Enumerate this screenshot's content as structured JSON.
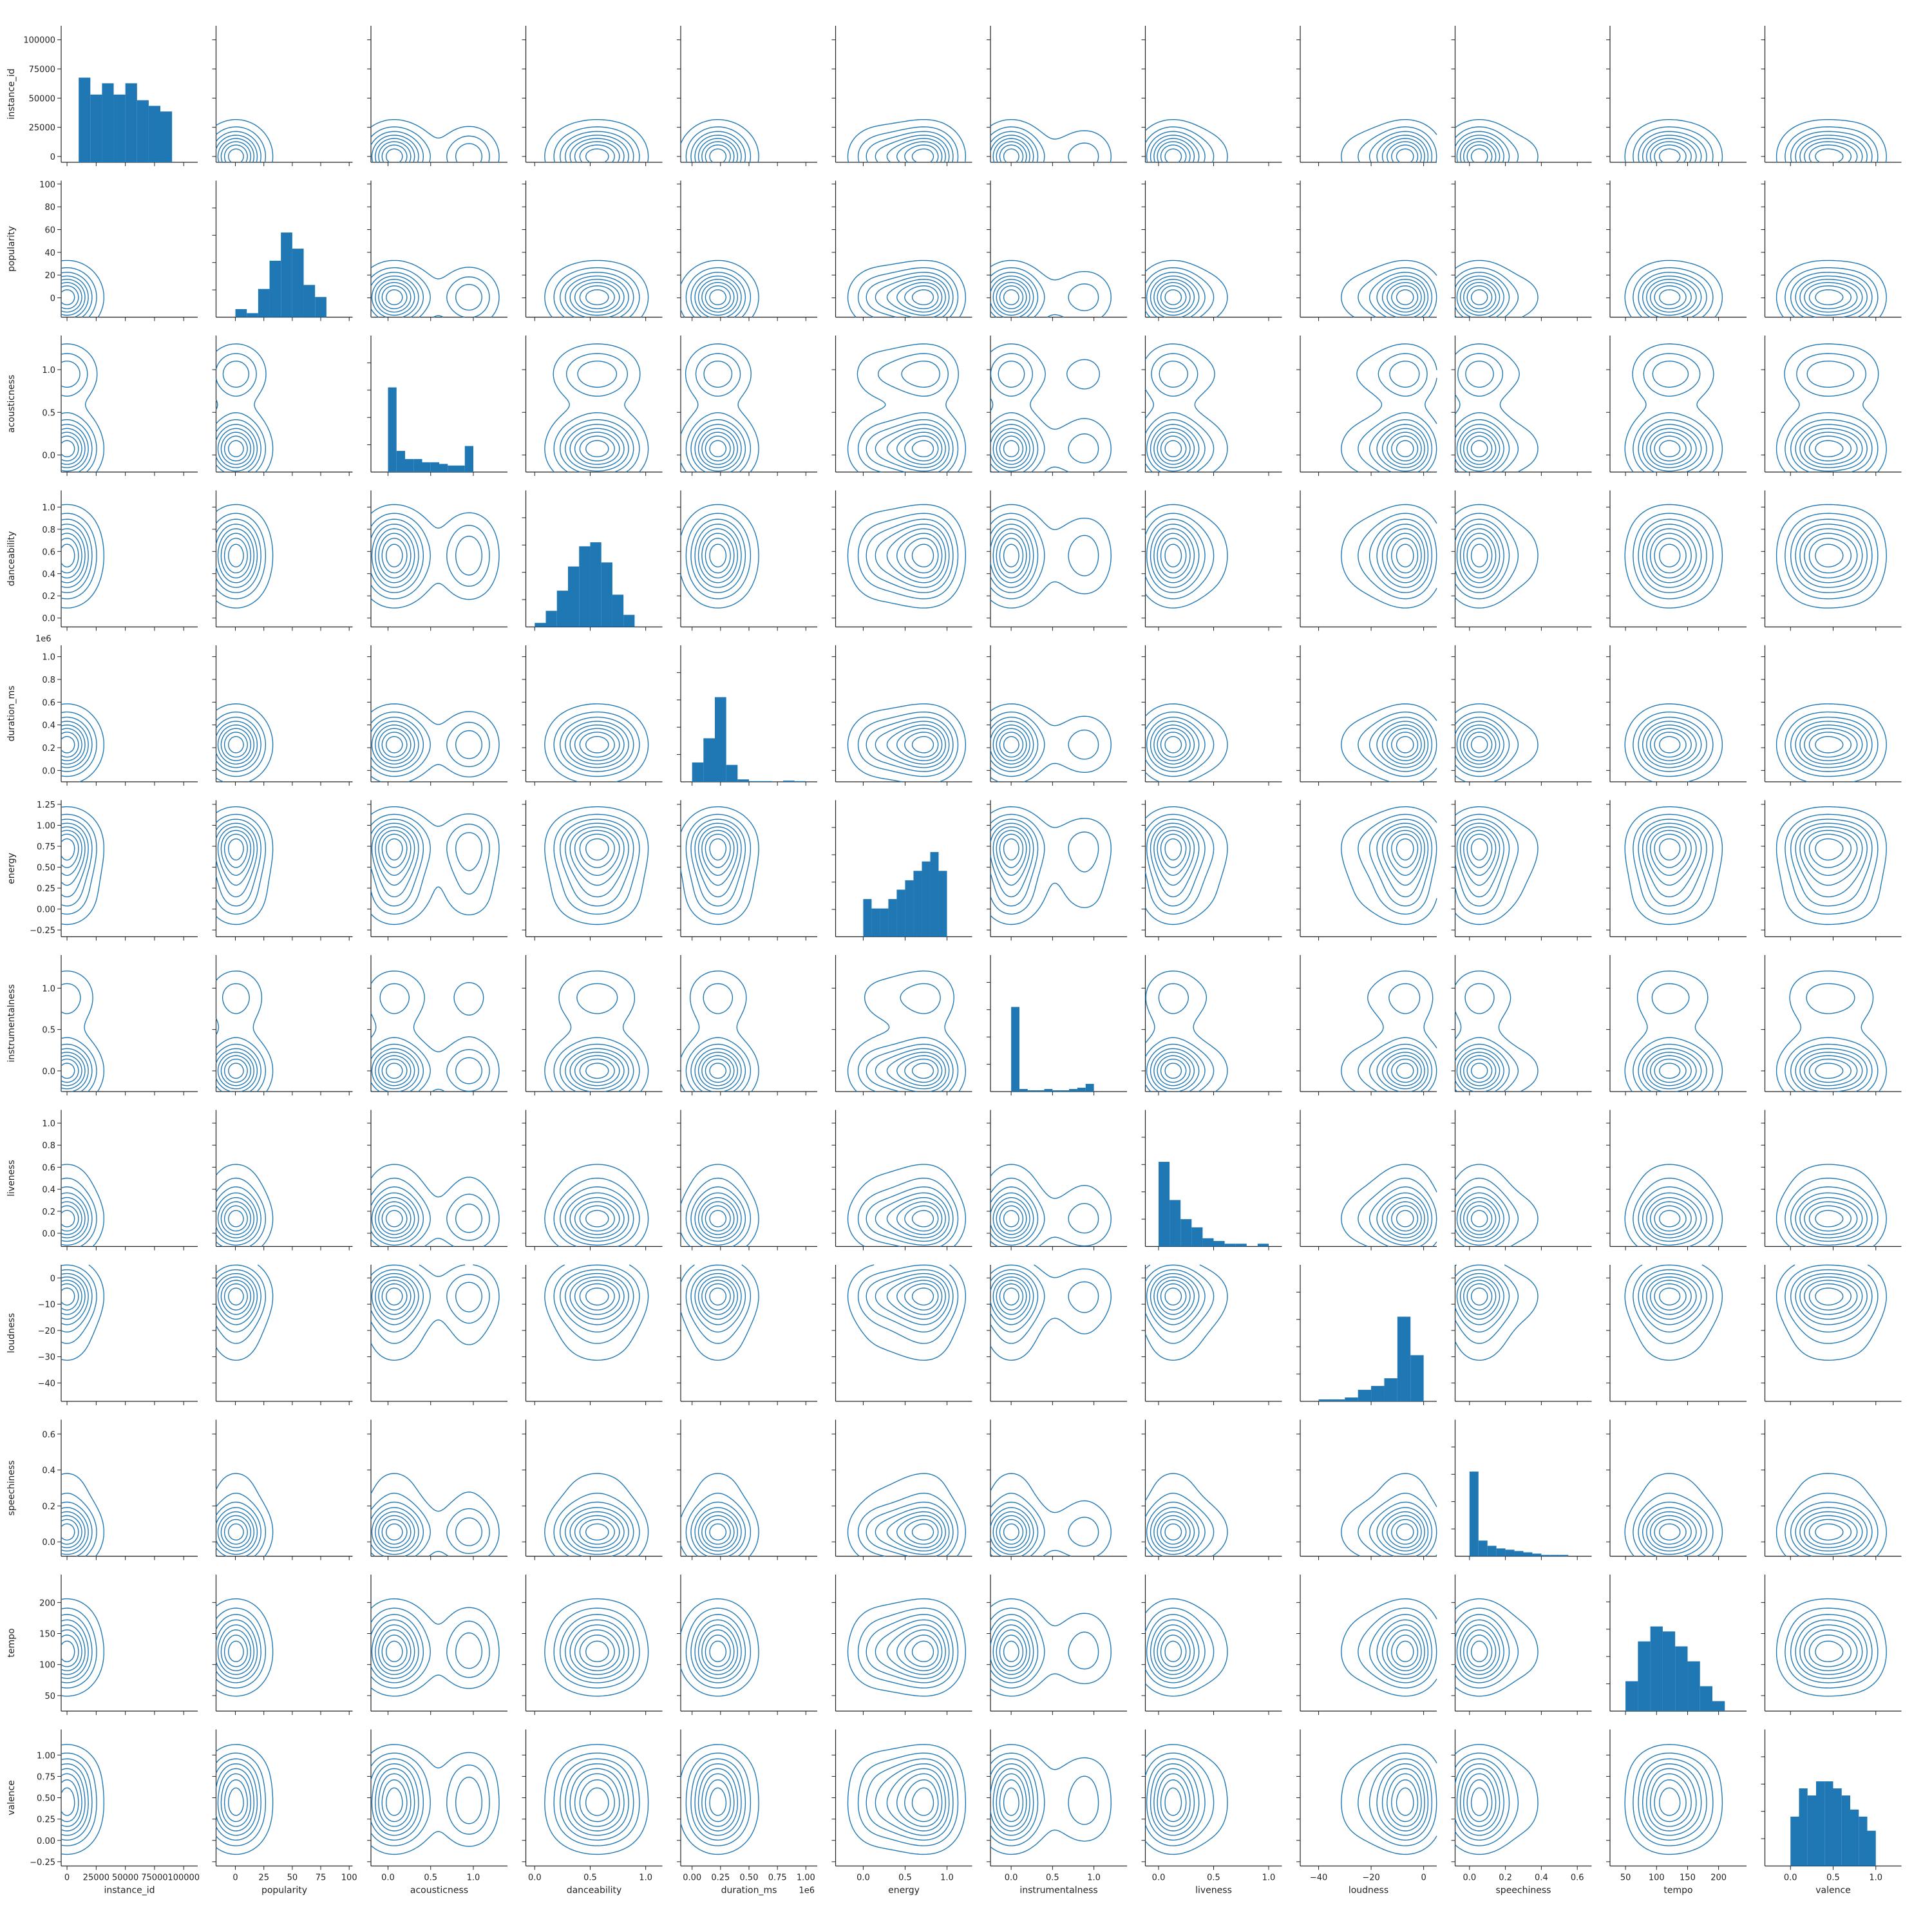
{
  "chart_data": {
    "type": "pairplot",
    "diagonal_type": "histogram",
    "off_diagonal_type": "kde-contour",
    "grid": false,
    "colors": {
      "series": "#1f77b4",
      "axis": "#222222"
    },
    "variables": [
      {
        "name": "instance_id",
        "lim": [
          -5000,
          112000
        ],
        "ticks": [
          0,
          25000,
          50000,
          75000,
          100000
        ],
        "tick_labels": [
          "0",
          "25000",
          "50000",
          "75000",
          "100000"
        ],
        "x_tick_labels": [
          "0",
          "25000",
          "50000",
          "75000",
          "100000"
        ],
        "exponent_label": ""
      },
      {
        "name": "popularity",
        "lim": [
          -17,
          103
        ],
        "ticks": [
          0,
          20,
          40,
          60,
          80,
          100
        ],
        "tick_labels": [
          "0",
          "20",
          "40",
          "60",
          "80",
          "100"
        ],
        "x_ticks": [
          0,
          25,
          50,
          75,
          100
        ],
        "x_tick_labels": [
          "0",
          "25",
          "50",
          "75",
          "100"
        ],
        "exponent_label": ""
      },
      {
        "name": "acousticness",
        "lim": [
          -0.2,
          1.4
        ],
        "ticks": [
          0.0,
          0.5,
          1.0
        ],
        "tick_labels": [
          "0.0",
          "0.5",
          "1.0"
        ],
        "x_tick_labels": [
          "0.0",
          "0.5",
          "1.0"
        ],
        "exponent_label": ""
      },
      {
        "name": "danceability",
        "lim": [
          -0.08,
          1.15
        ],
        "ticks": [
          0.0,
          0.2,
          0.4,
          0.6,
          0.8,
          1.0
        ],
        "tick_labels": [
          "0.0",
          "0.2",
          "0.4",
          "0.6",
          "0.8",
          "1.0"
        ],
        "x_ticks": [
          0.0,
          0.5,
          1.0
        ],
        "x_tick_labels": [
          "0.0",
          "0.5",
          "1.0"
        ],
        "exponent_label": ""
      },
      {
        "name": "duration_ms",
        "lim": [
          -0.1,
          1.1
        ],
        "ticks": [
          0.0,
          0.2,
          0.4,
          0.6,
          0.8,
          1.0
        ],
        "tick_labels": [
          "0.0",
          "0.2",
          "0.4",
          "0.6",
          "0.8",
          "1.0"
        ],
        "x_ticks": [
          0.0,
          0.25,
          0.5,
          0.75,
          1.0
        ],
        "x_tick_labels": [
          "0.00",
          "0.25",
          "0.50",
          "0.75",
          "1.00"
        ],
        "exponent_label": "1e6"
      },
      {
        "name": "energy",
        "lim": [
          -0.33,
          1.3
        ],
        "ticks": [
          -0.25,
          0.0,
          0.25,
          0.5,
          0.75,
          1.0,
          1.25
        ],
        "tick_labels": [
          "−0.25",
          "0.00",
          "0.25",
          "0.50",
          "0.75",
          "1.00",
          "1.25"
        ],
        "x_ticks": [
          0.0,
          0.5,
          1.0
        ],
        "x_tick_labels": [
          "0.0",
          "0.5",
          "1.0"
        ],
        "exponent_label": ""
      },
      {
        "name": "instrumentalness",
        "lim": [
          -0.25,
          1.4
        ],
        "ticks": [
          0.0,
          0.5,
          1.0
        ],
        "tick_labels": [
          "0.0",
          "0.5",
          "1.0"
        ],
        "x_tick_labels": [
          "0.0",
          "0.5",
          "1.0"
        ],
        "exponent_label": ""
      },
      {
        "name": "liveness",
        "lim": [
          -0.12,
          1.12
        ],
        "ticks": [
          0.0,
          0.2,
          0.4,
          0.6,
          0.8,
          1.0
        ],
        "tick_labels": [
          "0.0",
          "0.2",
          "0.4",
          "0.6",
          "0.8",
          "1.0"
        ],
        "x_ticks": [
          0.0,
          0.5,
          1.0
        ],
        "x_tick_labels": [
          "0.0",
          "0.5",
          "1.0"
        ],
        "exponent_label": ""
      },
      {
        "name": "loudness",
        "lim": [
          -47,
          5
        ],
        "ticks": [
          -40,
          -30,
          -20,
          -10,
          0
        ],
        "tick_labels": [
          "−40",
          "−30",
          "−20",
          "−10",
          "0"
        ],
        "x_ticks": [
          -40,
          -20,
          0
        ],
        "x_tick_labels": [
          "−40",
          "−20",
          "0"
        ],
        "exponent_label": ""
      },
      {
        "name": "speechiness",
        "lim": [
          -0.08,
          0.68
        ],
        "ticks": [
          0.0,
          0.2,
          0.4,
          0.6
        ],
        "tick_labels": [
          "0.0",
          "0.2",
          "0.4",
          "0.6"
        ],
        "x_tick_labels": [
          "0.0",
          "0.2",
          "0.4",
          "0.6"
        ],
        "exponent_label": ""
      },
      {
        "name": "tempo",
        "lim": [
          25,
          245
        ],
        "ticks": [
          50,
          100,
          150,
          200
        ],
        "tick_labels": [
          "50",
          "100",
          "150",
          "200"
        ],
        "x_ticks": [
          50,
          100,
          150,
          200
        ],
        "x_tick_labels": [
          "50",
          "100",
          "150",
          "200"
        ],
        "exponent_label": ""
      },
      {
        "name": "valence",
        "lim": [
          -0.3,
          1.3
        ],
        "ticks": [
          -0.25,
          0.0,
          0.25,
          0.5,
          0.75,
          1.0
        ],
        "tick_labels": [
          "−0.25",
          "0.00",
          "0.25",
          "0.50",
          "0.75",
          "1.00"
        ],
        "x_ticks": [
          0.0,
          0.5,
          1.0
        ],
        "x_tick_labels": [
          "0.0",
          "0.5",
          "1.0"
        ],
        "exponent_label": ""
      }
    ],
    "histograms": {
      "instance_id": {
        "edges": [
          10000,
          20000,
          30000,
          40000,
          50000,
          60000,
          70000,
          80000,
          90000
        ],
        "counts": [
          15,
          12,
          14,
          12,
          14,
          11,
          10,
          9
        ]
      },
      "popularity": {
        "edges": [
          0,
          10,
          20,
          30,
          40,
          50,
          60,
          70,
          80
        ],
        "counts": [
          2,
          1,
          7,
          14,
          21,
          17,
          8,
          5
        ]
      },
      "acousticness": {
        "edges": [
          0.0,
          0.1,
          0.2,
          0.3,
          0.4,
          0.5,
          0.6,
          0.7,
          0.8,
          0.9,
          1.0
        ],
        "counts": [
          52,
          13,
          8,
          8,
          6,
          6,
          5,
          4,
          4,
          16
        ]
      },
      "danceability": {
        "edges": [
          0.0,
          0.1,
          0.2,
          0.3,
          0.4,
          0.5,
          0.6,
          0.7,
          0.8,
          0.9
        ],
        "counts": [
          1,
          4,
          9,
          15,
          20,
          21,
          16,
          8,
          3
        ]
      },
      "duration_ms": {
        "edges": [
          0.0,
          0.1,
          0.2,
          0.3,
          0.4,
          0.5,
          0.6,
          0.7,
          0.8,
          0.9,
          1.0
        ],
        "counts": [
          8,
          18,
          35,
          7,
          1,
          0.3,
          0.3,
          0,
          0.5,
          0.3
        ]
      },
      "energy": {
        "edges": [
          0.0,
          0.1,
          0.2,
          0.3,
          0.4,
          0.5,
          0.6,
          0.7,
          0.8,
          0.9,
          1.0
        ],
        "counts": [
          4,
          3,
          3,
          4,
          5,
          6,
          7,
          8,
          9,
          7
        ]
      },
      "instrumentalness": {
        "edges": [
          0.0,
          0.1,
          0.2,
          0.3,
          0.4,
          0.5,
          0.6,
          0.7,
          0.8,
          0.9,
          1.0
        ],
        "counts": [
          66,
          2,
          1,
          1,
          2,
          1,
          1,
          2,
          3,
          6
        ]
      },
      "liveness": {
        "edges": [
          0.0,
          0.1,
          0.2,
          0.3,
          0.4,
          0.5,
          0.6,
          0.7,
          0.8,
          0.9,
          1.0
        ],
        "counts": [
          31,
          17,
          10,
          7,
          3,
          2,
          1,
          1,
          0,
          1
        ]
      },
      "loudness": {
        "edges": [
          -40,
          -35,
          -30,
          -25,
          -20,
          -15,
          -10,
          -5,
          0
        ],
        "counts": [
          0.5,
          0.5,
          1,
          3,
          4,
          6,
          22,
          12
        ]
      },
      "speechiness": {
        "edges": [
          0.0,
          0.05,
          0.1,
          0.15,
          0.2,
          0.25,
          0.3,
          0.35,
          0.4,
          0.45,
          0.5,
          0.55,
          0.6
        ],
        "counts": [
          65,
          12,
          8,
          6,
          5,
          4,
          3,
          2,
          1,
          1,
          1,
          0
        ]
      },
      "tempo": {
        "edges": [
          50,
          70,
          90,
          110,
          130,
          150,
          170,
          190,
          210
        ],
        "counts": [
          6,
          14,
          17,
          16,
          13,
          10,
          5,
          2
        ]
      },
      "valence": {
        "edges": [
          0.0,
          0.1,
          0.2,
          0.3,
          0.4,
          0.5,
          0.6,
          0.7,
          0.8,
          0.9,
          1.0
        ],
        "counts": [
          7,
          11,
          10,
          12,
          12,
          11,
          10,
          8,
          7,
          5
        ]
      }
    },
    "centers": {
      "instance_id": [
        [
          0.3,
          1.0
        ],
        [
          0.7,
          1.0
        ]
      ],
      "popularity": [
        [
          0.3,
          0.4
        ],
        [
          0.5,
          1.0
        ],
        [
          0.7,
          0.3
        ]
      ],
      "acousticness": [
        [
          0.05,
          1.5
        ],
        [
          0.3,
          0.3
        ],
        [
          0.95,
          0.7
        ]
      ],
      "danceability": [
        [
          0.35,
          0.5
        ],
        [
          0.55,
          1.0
        ],
        [
          0.75,
          0.6
        ]
      ],
      "duration_ms": [
        [
          0.15,
          0.6
        ],
        [
          0.23,
          1.5
        ],
        [
          0.35,
          0.4
        ]
      ],
      "energy": [
        [
          0.15,
          0.5
        ],
        [
          0.5,
          0.7
        ],
        [
          0.8,
          1.2
        ]
      ],
      "instrumentalness": [
        [
          0.0,
          1.5
        ],
        [
          0.5,
          0.1
        ],
        [
          0.9,
          0.4
        ]
      ],
      "liveness": [
        [
          0.1,
          1.5
        ],
        [
          0.2,
          0.6
        ],
        [
          0.45,
          0.3
        ]
      ],
      "loudness": [
        [
          -25,
          0.2
        ],
        [
          -15,
          0.4
        ],
        [
          -6,
          1.5
        ]
      ],
      "speechiness": [
        [
          0.04,
          1.5
        ],
        [
          0.12,
          0.4
        ],
        [
          0.3,
          0.2
        ]
      ],
      "tempo": [
        [
          100,
          0.8
        ],
        [
          125,
          1.0
        ],
        [
          160,
          0.6
        ]
      ],
      "valence": [
        [
          0.2,
          0.7
        ],
        [
          0.45,
          1.0
        ],
        [
          0.75,
          0.8
        ]
      ]
    },
    "contour_levels": 8
  }
}
